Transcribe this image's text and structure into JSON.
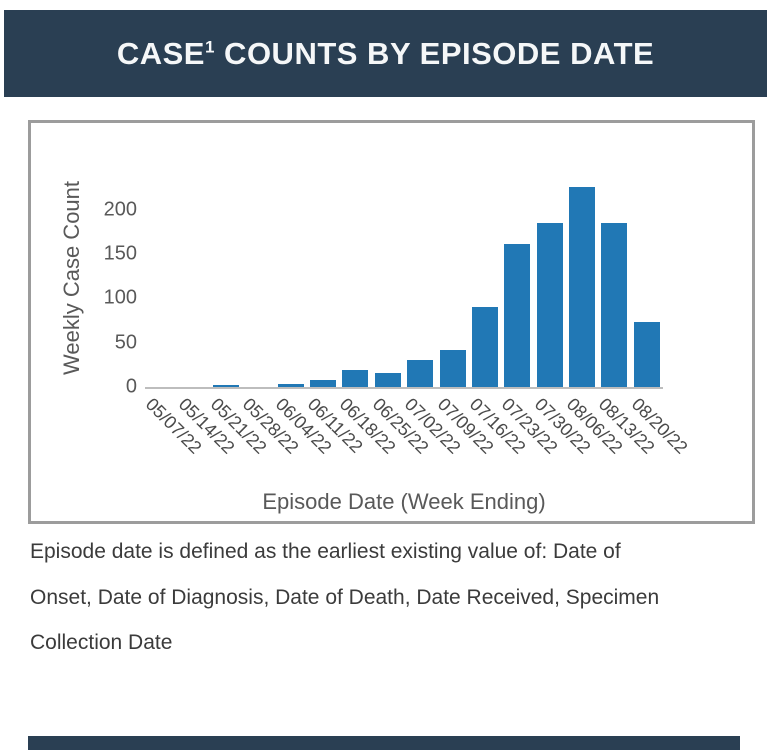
{
  "header": {
    "title": {
      "main": "CASE",
      "sup": "1",
      "rest": " COUNTS BY EPISODE DATE"
    }
  },
  "chart_data": {
    "type": "bar",
    "title": "",
    "ylabel": "Weekly Case Count",
    "xlabel": "Episode Date (Week Ending)",
    "categories": [
      "05/07/22",
      "05/14/22",
      "05/21/22",
      "05/28/22",
      "06/04/22",
      "06/11/22",
      "06/18/22",
      "06/25/22",
      "07/02/22",
      "07/09/22",
      "07/16/22",
      "07/23/22",
      "07/30/22",
      "08/06/22",
      "08/13/22",
      "08/20/22"
    ],
    "values": [
      0,
      0,
      2,
      0,
      3,
      8,
      19,
      16,
      31,
      42,
      90,
      161,
      185,
      226,
      185,
      73
    ],
    "yticks": [
      0,
      50,
      100,
      150,
      200
    ],
    "ylim": [
      0,
      240
    ],
    "grid": false,
    "legend": "none",
    "bar_color": "#2178b5"
  },
  "footer": {
    "lines": [
      "Episode date is defined as the earliest existing value of: Date of",
      "Onset, Date of Diagnosis, Date of Death, Date Received, Specimen",
      "Collection Date"
    ]
  },
  "colors": {
    "banner": "#2a3f53",
    "bar": "#2178b5",
    "axis_text": "#595959",
    "tick_text": "#4a4a4a",
    "footer_text": "#3b3b3b",
    "panel_border": "#9c9c9c",
    "axis_line": "#bdbdbd"
  }
}
